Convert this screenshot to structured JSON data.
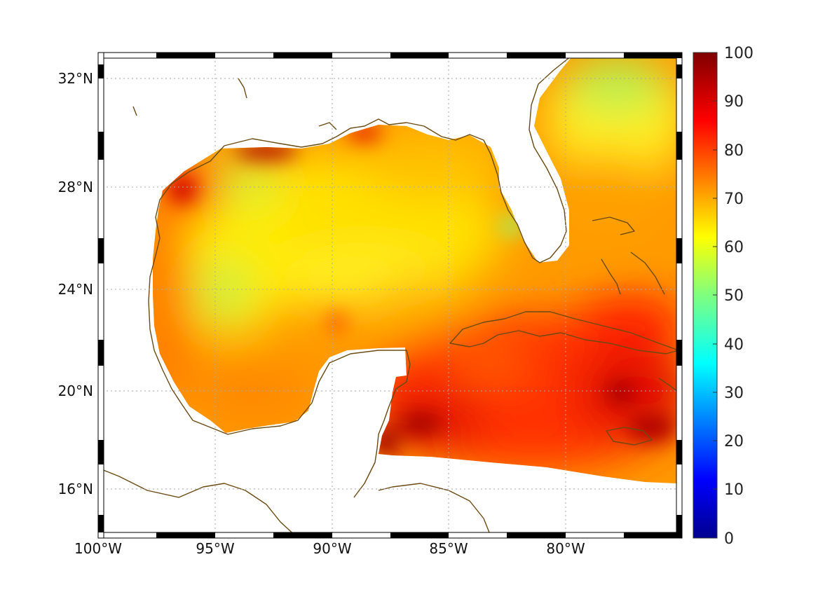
{
  "map": {
    "projection": "Mercator",
    "extent": {
      "lon": [
        -100,
        -75
      ],
      "lat": [
        14.2,
        32.9
      ]
    },
    "lat_ticks": [
      {
        "value": 32,
        "label": "32°N"
      },
      {
        "value": 28,
        "label": "28°N"
      },
      {
        "value": 24,
        "label": "24°N"
      },
      {
        "value": 20,
        "label": "20°N"
      },
      {
        "value": 16,
        "label": "16°N"
      }
    ],
    "lon_ticks": [
      {
        "value": -100,
        "label": "100°W"
      },
      {
        "value": -95,
        "label": "95°W"
      },
      {
        "value": -90,
        "label": "90°W"
      },
      {
        "value": -85,
        "label": "85°W"
      },
      {
        "value": -80,
        "label": "80°W"
      }
    ],
    "coastline_color": "#6b4a12",
    "land_color": "#ffffff",
    "grid": "dotted"
  },
  "colorbar": {
    "colormap": "jet",
    "range": [
      0,
      100
    ],
    "ticks": [
      "100",
      "90",
      "80",
      "70",
      "60",
      "50",
      "40",
      "30",
      "20",
      "10",
      "0"
    ]
  }
}
